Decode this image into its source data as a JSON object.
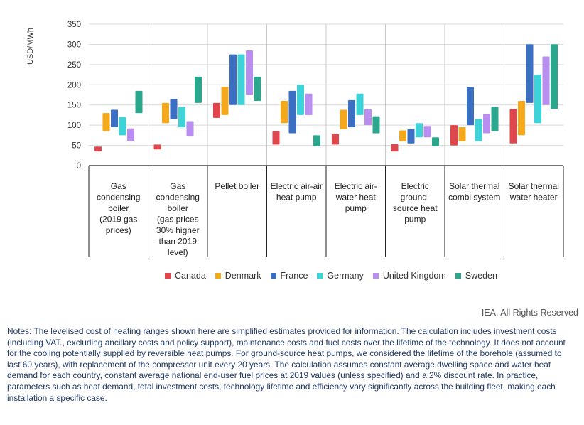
{
  "chart_data": {
    "type": "bar",
    "subtype": "floating range",
    "ylabel": "USD/MWh",
    "ylim": [
      0,
      350
    ],
    "yticks": [
      0,
      50,
      100,
      150,
      200,
      250,
      300,
      350
    ],
    "categories": [
      "Gas condensing boiler (2019 gas prices)",
      "Gas condensing boiler (gas prices 30% higher than 2019 level)",
      "Pellet boiler",
      "Electric air-air heat pump",
      "Electric air-water heat pump",
      "Electric ground-source heat pump",
      "Solar thermal combi system",
      "Solar thermal water heater"
    ],
    "category_lines": [
      [
        "Gas",
        "condensing",
        "boiler",
        "(2019 gas",
        "prices)"
      ],
      [
        "Gas",
        "condensing",
        "boiler",
        "(gas prices",
        "30% higher",
        "than 2019",
        "level)"
      ],
      [
        "Pellet boiler"
      ],
      [
        "Electric air-air",
        "heat pump"
      ],
      [
        "Electric air-",
        "water heat",
        "pump"
      ],
      [
        "Electric",
        "ground-",
        "source heat",
        "pump"
      ],
      [
        "Solar thermal",
        "combi system"
      ],
      [
        "Solar thermal",
        "water heater"
      ]
    ],
    "series": [
      {
        "name": "Canada",
        "color": "#e0474c",
        "ranges": [
          [
            35,
            47
          ],
          [
            40,
            52
          ],
          [
            118,
            155
          ],
          [
            52,
            85
          ],
          [
            52,
            78
          ],
          [
            35,
            53
          ],
          [
            50,
            100
          ],
          [
            55,
            140
          ]
        ]
      },
      {
        "name": "Denmark",
        "color": "#f4a81c",
        "ranges": [
          [
            85,
            130
          ],
          [
            105,
            155
          ],
          [
            125,
            195
          ],
          [
            105,
            160
          ],
          [
            90,
            138
          ],
          [
            60,
            87
          ],
          [
            60,
            95
          ],
          [
            75,
            160
          ]
        ]
      },
      {
        "name": "France",
        "color": "#3a6fc4",
        "ranges": [
          [
            95,
            138
          ],
          [
            115,
            165
          ],
          [
            150,
            275
          ],
          [
            80,
            185
          ],
          [
            95,
            162
          ],
          [
            55,
            90
          ],
          [
            100,
            195
          ],
          [
            155,
            300
          ]
        ]
      },
      {
        "name": "Germany",
        "color": "#3ed3d9",
        "ranges": [
          [
            75,
            120
          ],
          [
            95,
            145
          ],
          [
            150,
            275
          ],
          [
            125,
            200
          ],
          [
            125,
            178
          ],
          [
            70,
            105
          ],
          [
            60,
            115
          ],
          [
            105,
            225
          ]
        ]
      },
      {
        "name": "United Kingdom",
        "color": "#b98ef0",
        "ranges": [
          [
            60,
            92
          ],
          [
            72,
            110
          ],
          [
            175,
            285
          ],
          [
            125,
            178
          ],
          [
            100,
            140
          ],
          [
            70,
            98
          ],
          [
            80,
            128
          ],
          [
            150,
            270
          ]
        ]
      },
      {
        "name": "Sweden",
        "color": "#2aa78d",
        "ranges": [
          [
            130,
            185
          ],
          [
            155,
            220
          ],
          [
            160,
            220
          ],
          [
            48,
            75
          ],
          [
            80,
            122
          ],
          [
            48,
            70
          ],
          [
            85,
            145
          ],
          [
            140,
            300
          ]
        ]
      }
    ],
    "legend_position": "bottom",
    "grid": {
      "horizontal": true,
      "vertical": false
    }
  },
  "credit": "IEA. All Rights Reserved",
  "notes_segments": [
    {
      "text": "Notes: The levelised cost of heating ranges shown here are simplified estimates provided for information. The calculation includes investment costs (including VAT., excluding ancillary costs and policy support), maintenance costs and fuel costs over the lifetime of the technology. It does not account for the cooling potentially supplied by reversible heat pumps. For ground-source heat pumps, we considered the lifetime of the borehole (assumed to last 60 years), with replacement of the compressor unit every 20 years. The calculation assumes constant average dwelling space and water heat demand for each country, constant average national end-user fuel prices at 2019 values (unless specified) and a 2% discount rate. In practice, parameters such as "
    },
    {
      "text": "heat demand, total investment costs, technology lifetime and efficiency vary significantly across the building fleet, making each installation a specific case."
    }
  ]
}
